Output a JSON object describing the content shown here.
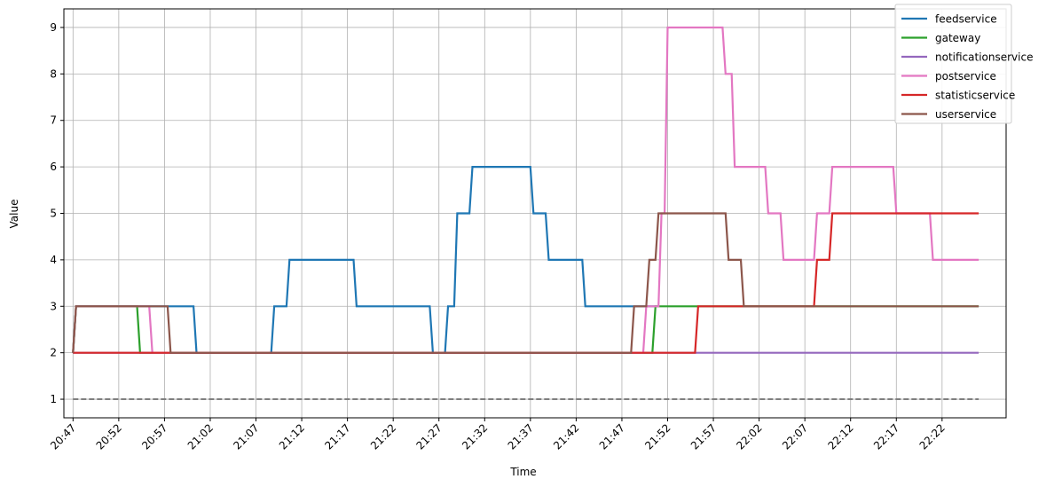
{
  "chart_data": {
    "type": "line",
    "xlabel": "Time",
    "ylabel": "Value",
    "x_tick_labels": [
      "20:47",
      "20:52",
      "20:57",
      "21:02",
      "21:07",
      "21:12",
      "21:17",
      "21:22",
      "21:27",
      "21:32",
      "21:37",
      "21:42",
      "21:47",
      "21:52",
      "21:57",
      "22:02",
      "22:07",
      "22:12",
      "22:17",
      "22:22"
    ],
    "y_tick_labels": [
      "1",
      "2",
      "3",
      "4",
      "5",
      "6",
      "7",
      "8",
      "9"
    ],
    "xlim": [
      "20:46:00",
      "22:29:00"
    ],
    "ylim": [
      0.6,
      9.4
    ],
    "grid": true,
    "legend_position": "top-right",
    "series": [
      {
        "name": "feedservice",
        "color": "#1f77b4",
        "x": [
          "20:47",
          "20:47:20",
          "21:00:10",
          "21:00:30",
          "21:08:40",
          "21:09",
          "21:10:20",
          "21:10:40",
          "21:17:40",
          "21:18",
          "21:26",
          "21:26:20",
          "21:27:40",
          "21:28",
          "21:28:40",
          "21:29",
          "21:30:20",
          "21:30:40",
          "21:37",
          "21:37:20",
          "21:38:40",
          "21:39",
          "21:42:40",
          "21:43",
          "21:51"
        ],
        "y": [
          2,
          3,
          3,
          2,
          2,
          3,
          3,
          4,
          4,
          3,
          3,
          2,
          2,
          3,
          3,
          5,
          5,
          6,
          6,
          5,
          5,
          4,
          4,
          3,
          3
        ]
      },
      {
        "name": "gateway",
        "color": "#2ca02c",
        "x": [
          "20:47",
          "20:47:20",
          "20:54",
          "20:54:20",
          "21:50:20",
          "21:50:40",
          "21:55",
          "21:55:20",
          "22:26"
        ],
        "y": [
          2,
          3,
          3,
          2,
          2,
          3,
          3,
          3,
          3
        ]
      },
      {
        "name": "notificationservice",
        "color": "#9467bd",
        "x": [
          "20:47",
          "21:55:20",
          "22:26"
        ],
        "y": [
          2,
          2,
          2
        ]
      },
      {
        "name": "postservice",
        "color": "#e377c2",
        "x": [
          "20:47",
          "20:47:20",
          "20:55:20",
          "20:55:40",
          "21:49:20",
          "21:49:40",
          "21:51",
          "21:51:20",
          "21:51:40",
          "21:52",
          "21:58",
          "21:58:20",
          "21:59",
          "21:59:20",
          "22:02:40",
          "22:03",
          "22:04:20",
          "22:04:40",
          "22:08",
          "22:08:20",
          "22:09:40",
          "22:10",
          "22:16:40",
          "22:17",
          "22:20:40",
          "22:21",
          "22:26"
        ],
        "y": [
          2,
          3,
          3,
          2,
          2,
          3,
          3,
          5,
          5,
          9,
          9,
          8,
          8,
          6,
          6,
          5,
          5,
          4,
          4,
          5,
          5,
          6,
          6,
          5,
          5,
          4,
          4
        ]
      },
      {
        "name": "statisticservice",
        "color": "#d62728",
        "x": [
          "20:47",
          "21:55",
          "21:55:20",
          "22:08",
          "22:08:20",
          "22:09:40",
          "22:10",
          "22:26"
        ],
        "y": [
          2,
          2,
          3,
          3,
          4,
          4,
          5,
          5
        ]
      },
      {
        "name": "userservice",
        "color": "#8c564b",
        "x": [
          "20:47",
          "20:47:20",
          "20:57:20",
          "20:57:40",
          "21:48",
          "21:48:20",
          "21:49:40",
          "21:50",
          "21:50:40",
          "21:51",
          "21:58:20",
          "21:58:40",
          "22:00",
          "22:00:20",
          "22:26"
        ],
        "y": [
          2,
          3,
          3,
          2,
          2,
          3,
          3,
          4,
          4,
          5,
          5,
          4,
          4,
          3,
          3
        ]
      }
    ],
    "dashed_lines": [
      {
        "color": "#7f7f7f",
        "x": [
          "20:47",
          "22:26"
        ],
        "y": [
          1,
          1
        ]
      }
    ]
  }
}
